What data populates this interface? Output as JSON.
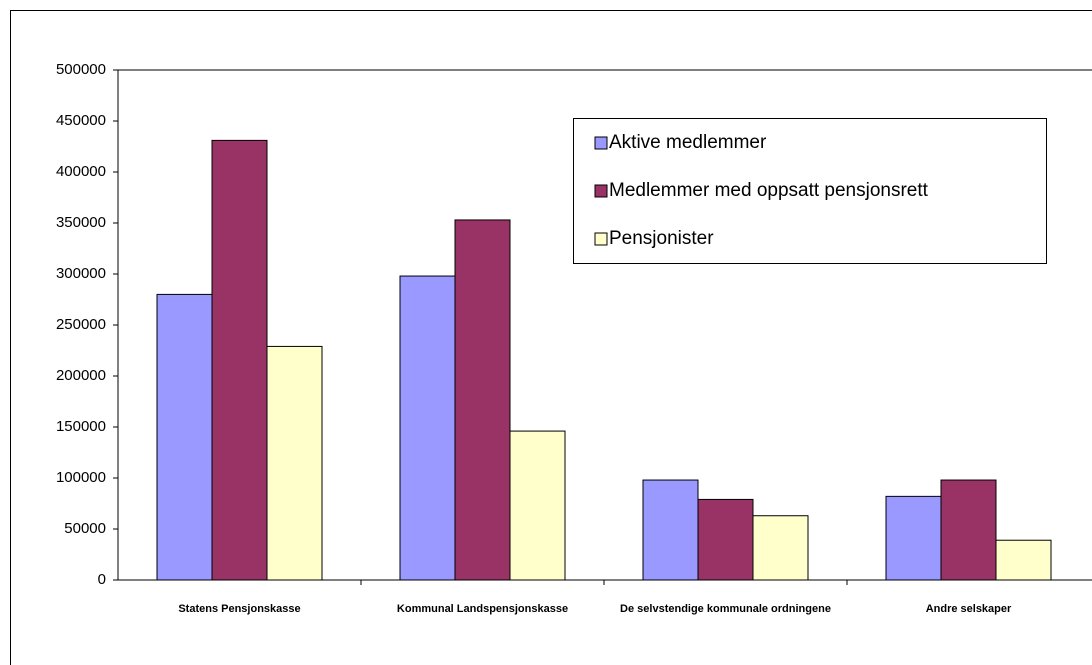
{
  "chart_data": {
    "type": "bar",
    "categories": [
      "Statens Pensjonskasse",
      "Kommunal Landspensjonskasse",
      "De selvstendige kommunale ordningene",
      "Andre selskaper"
    ],
    "series": [
      {
        "name": "Aktive medlemmer",
        "color": "#9999ff",
        "values": [
          280000,
          298000,
          98000,
          82000
        ]
      },
      {
        "name": "Medlemmer med oppsatt pensjonsrett",
        "color": "#993366",
        "values": [
          431000,
          353000,
          79000,
          98000
        ]
      },
      {
        "name": "Pensjonister",
        "color": "#ffffcc",
        "values": [
          229000,
          146000,
          63000,
          39000
        ]
      }
    ],
    "ylim": [
      0,
      500000
    ],
    "yticks": [
      0,
      50000,
      100000,
      150000,
      200000,
      250000,
      300000,
      350000,
      400000,
      450000,
      500000
    ],
    "grid": false,
    "legend": "upper right"
  }
}
